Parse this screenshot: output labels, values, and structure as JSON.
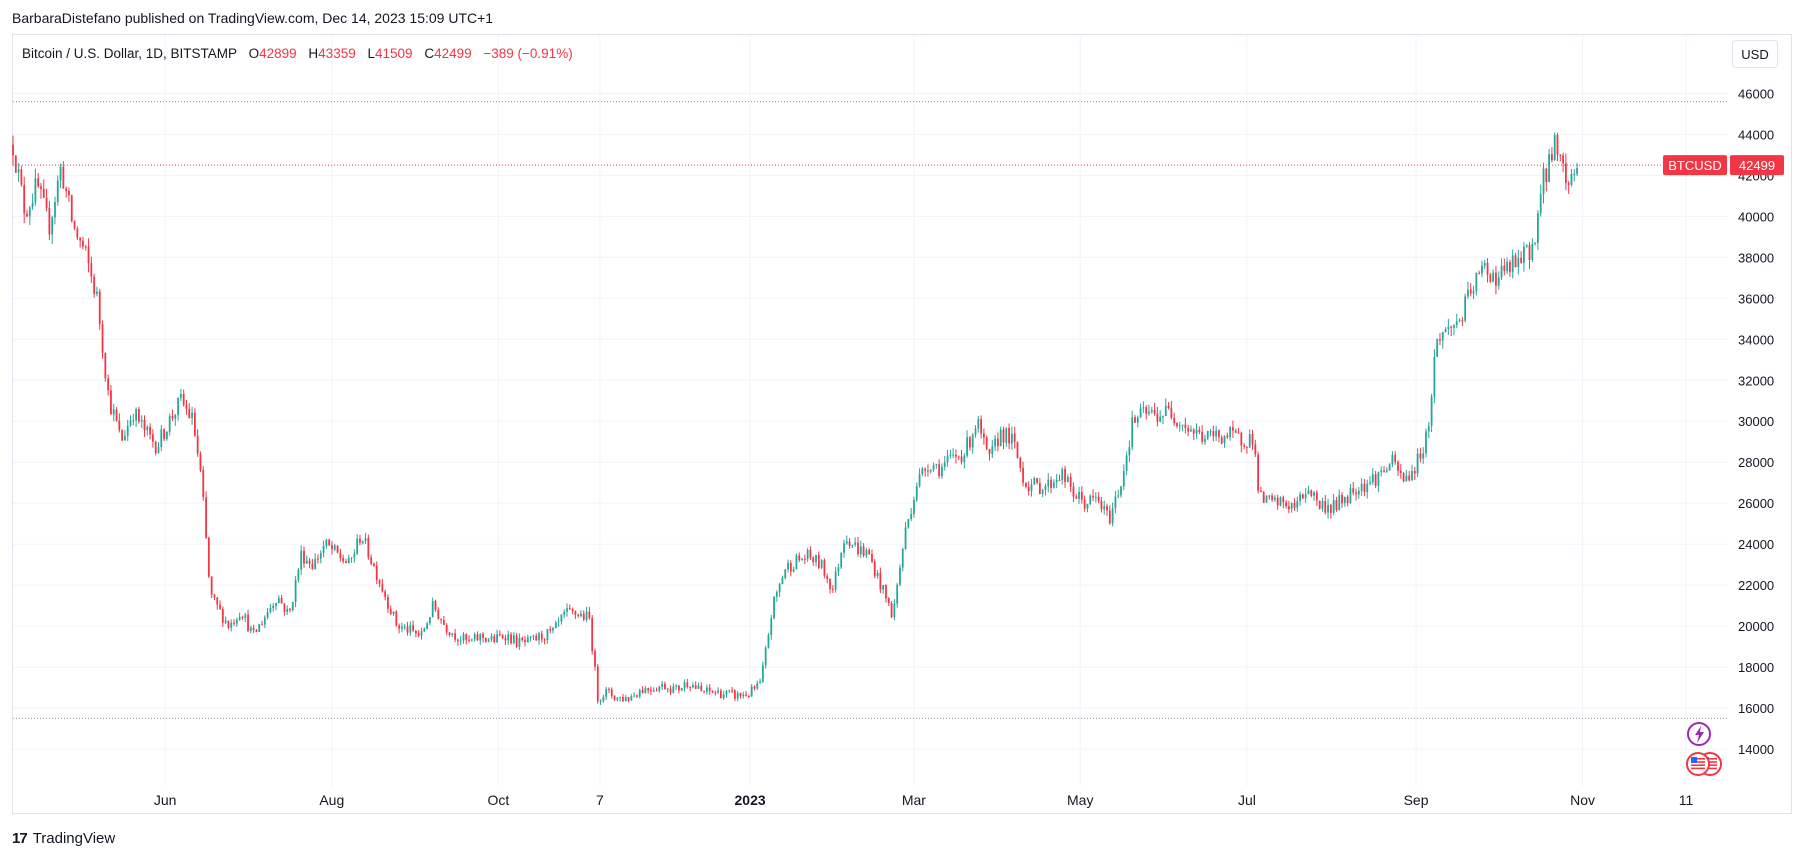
{
  "header": {
    "publish_text": "BarbaraDistefano published on TradingView.com, Dec 14, 2023 15:09 UTC+1"
  },
  "legend": {
    "symbol": "Bitcoin / U.S. Dollar, 1D, BITSTAMP",
    "open_label": "O",
    "open": "42899",
    "high_label": "H",
    "high": "43359",
    "low_label": "L",
    "low": "41509",
    "close_label": "C",
    "close": "42499",
    "change": "−389 (−0.91%)"
  },
  "currency_button": "USD",
  "price_tag": {
    "ticker": "BTCUSD",
    "price": "42499"
  },
  "footer": {
    "brand": "TradingView",
    "logo_glyph": "17"
  },
  "colors": {
    "up": "#26a69a",
    "down": "#f23645",
    "grid": "#f0f3fa",
    "text": "#131722"
  },
  "chart_data": {
    "type": "candlestick",
    "yticks": [
      14000,
      16000,
      18000,
      20000,
      22000,
      24000,
      26000,
      28000,
      30000,
      32000,
      34000,
      36000,
      38000,
      40000,
      42000,
      44000,
      46000
    ],
    "ylim": [
      12200,
      48800
    ],
    "xlabels": [
      {
        "label": "Jun",
        "pos": 0.0887,
        "bold": false
      },
      {
        "label": "Aug",
        "pos": 0.1859,
        "bold": false
      },
      {
        "label": "Oct",
        "pos": 0.283,
        "bold": false
      },
      {
        "label": "7",
        "pos": 0.3422,
        "bold": false
      },
      {
        "label": "2023",
        "pos": 0.4298,
        "bold": true
      },
      {
        "label": "Mar",
        "pos": 0.5253,
        "bold": false
      },
      {
        "label": "May",
        "pos": 0.6223,
        "bold": false
      },
      {
        "label": "Jul",
        "pos": 0.7195,
        "bold": false
      },
      {
        "label": "Sep",
        "pos": 0.8181,
        "bold": false
      },
      {
        "label": "Nov",
        "pos": 0.9152,
        "bold": false
      },
      {
        "label": "11",
        "pos": 0.9755,
        "bold": false
      }
    ],
    "reference_lines": [
      45600,
      15500
    ],
    "last_price": 42499,
    "anchors": [
      [
        0,
        43500
      ],
      [
        0.007,
        40200
      ],
      [
        0.014,
        41500
      ],
      [
        0.021,
        39500
      ],
      [
        0.028,
        42400
      ],
      [
        0.035,
        39500
      ],
      [
        0.042,
        38200
      ],
      [
        0.049,
        36000
      ],
      [
        0.056,
        31000
      ],
      [
        0.06,
        30000
      ],
      [
        0.063,
        29000
      ],
      [
        0.07,
        30500
      ],
      [
        0.077,
        29500
      ],
      [
        0.084,
        28800
      ],
      [
        0.091,
        30000
      ],
      [
        0.098,
        31000
      ],
      [
        0.105,
        30000
      ],
      [
        0.11,
        27000
      ],
      [
        0.115,
        21500
      ],
      [
        0.12,
        20800
      ],
      [
        0.126,
        20000
      ],
      [
        0.133,
        20800
      ],
      [
        0.14,
        19500
      ],
      [
        0.147,
        20500
      ],
      [
        0.154,
        21500
      ],
      [
        0.161,
        20500
      ],
      [
        0.168,
        23500
      ],
      [
        0.175,
        23000
      ],
      [
        0.182,
        24000
      ],
      [
        0.189,
        23500
      ],
      [
        0.196,
        23000
      ],
      [
        0.203,
        24500
      ],
      [
        0.21,
        23000
      ],
      [
        0.217,
        21500
      ],
      [
        0.224,
        20000
      ],
      [
        0.231,
        19800
      ],
      [
        0.238,
        19500
      ],
      [
        0.245,
        21000
      ],
      [
        0.252,
        20000
      ],
      [
        0.259,
        19500
      ],
      [
        0.266,
        19200
      ],
      [
        0.273,
        19500
      ],
      [
        0.28,
        19300
      ],
      [
        0.287,
        19600
      ],
      [
        0.294,
        19200
      ],
      [
        0.301,
        19200
      ],
      [
        0.308,
        19500
      ],
      [
        0.315,
        19700
      ],
      [
        0.322,
        20600
      ],
      [
        0.329,
        20600
      ],
      [
        0.336,
        20400
      ],
      [
        0.341,
        16500
      ],
      [
        0.346,
        16800
      ],
      [
        0.352,
        16500
      ],
      [
        0.359,
        16500
      ],
      [
        0.366,
        16900
      ],
      [
        0.373,
        17000
      ],
      [
        0.38,
        17100
      ],
      [
        0.387,
        16900
      ],
      [
        0.394,
        17300
      ],
      [
        0.401,
        16800
      ],
      [
        0.408,
        16800
      ],
      [
        0.415,
        16700
      ],
      [
        0.422,
        16600
      ],
      [
        0.429,
        16700
      ],
      [
        0.436,
        17200
      ],
      [
        0.443,
        21000
      ],
      [
        0.45,
        22800
      ],
      [
        0.457,
        23200
      ],
      [
        0.464,
        23400
      ],
      [
        0.471,
        23000
      ],
      [
        0.478,
        21800
      ],
      [
        0.485,
        24500
      ],
      [
        0.492,
        23800
      ],
      [
        0.499,
        23500
      ],
      [
        0.506,
        22000
      ],
      [
        0.513,
        20500
      ],
      [
        0.52,
        24500
      ],
      [
        0.527,
        27000
      ],
      [
        0.534,
        28000
      ],
      [
        0.541,
        27700
      ],
      [
        0.548,
        28200
      ],
      [
        0.555,
        28500
      ],
      [
        0.562,
        30000
      ],
      [
        0.569,
        28000
      ],
      [
        0.576,
        29500
      ],
      [
        0.583,
        29000
      ],
      [
        0.59,
        27000
      ],
      [
        0.597,
        26800
      ],
      [
        0.604,
        26900
      ],
      [
        0.611,
        27500
      ],
      [
        0.618,
        26500
      ],
      [
        0.625,
        26000
      ],
      [
        0.632,
        26200
      ],
      [
        0.639,
        25200
      ],
      [
        0.646,
        27000
      ],
      [
        0.653,
        30000
      ],
      [
        0.66,
        30400
      ],
      [
        0.667,
        30300
      ],
      [
        0.674,
        30500
      ],
      [
        0.681,
        30000
      ],
      [
        0.688,
        29500
      ],
      [
        0.695,
        29200
      ],
      [
        0.702,
        29300
      ],
      [
        0.709,
        29300
      ],
      [
        0.716,
        29100
      ],
      [
        0.723,
        29200
      ],
      [
        0.727,
        26200
      ],
      [
        0.734,
        26000
      ],
      [
        0.741,
        26000
      ],
      [
        0.748,
        25800
      ],
      [
        0.755,
        26800
      ],
      [
        0.762,
        25900
      ],
      [
        0.769,
        25800
      ],
      [
        0.776,
        26200
      ],
      [
        0.783,
        26800
      ],
      [
        0.79,
        27000
      ],
      [
        0.797,
        27400
      ],
      [
        0.804,
        28000
      ],
      [
        0.811,
        27100
      ],
      [
        0.818,
        27800
      ],
      [
        0.825,
        29500
      ],
      [
        0.83,
        34000
      ],
      [
        0.837,
        34500
      ],
      [
        0.844,
        35000
      ],
      [
        0.851,
        36500
      ],
      [
        0.858,
        37500
      ],
      [
        0.865,
        37000
      ],
      [
        0.872,
        37500
      ],
      [
        0.879,
        37800
      ],
      [
        0.886,
        38500
      ],
      [
        0.893,
        42000
      ],
      [
        0.9,
        43800
      ],
      [
        0.906,
        41500
      ],
      [
        0.912,
        42499
      ]
    ]
  }
}
